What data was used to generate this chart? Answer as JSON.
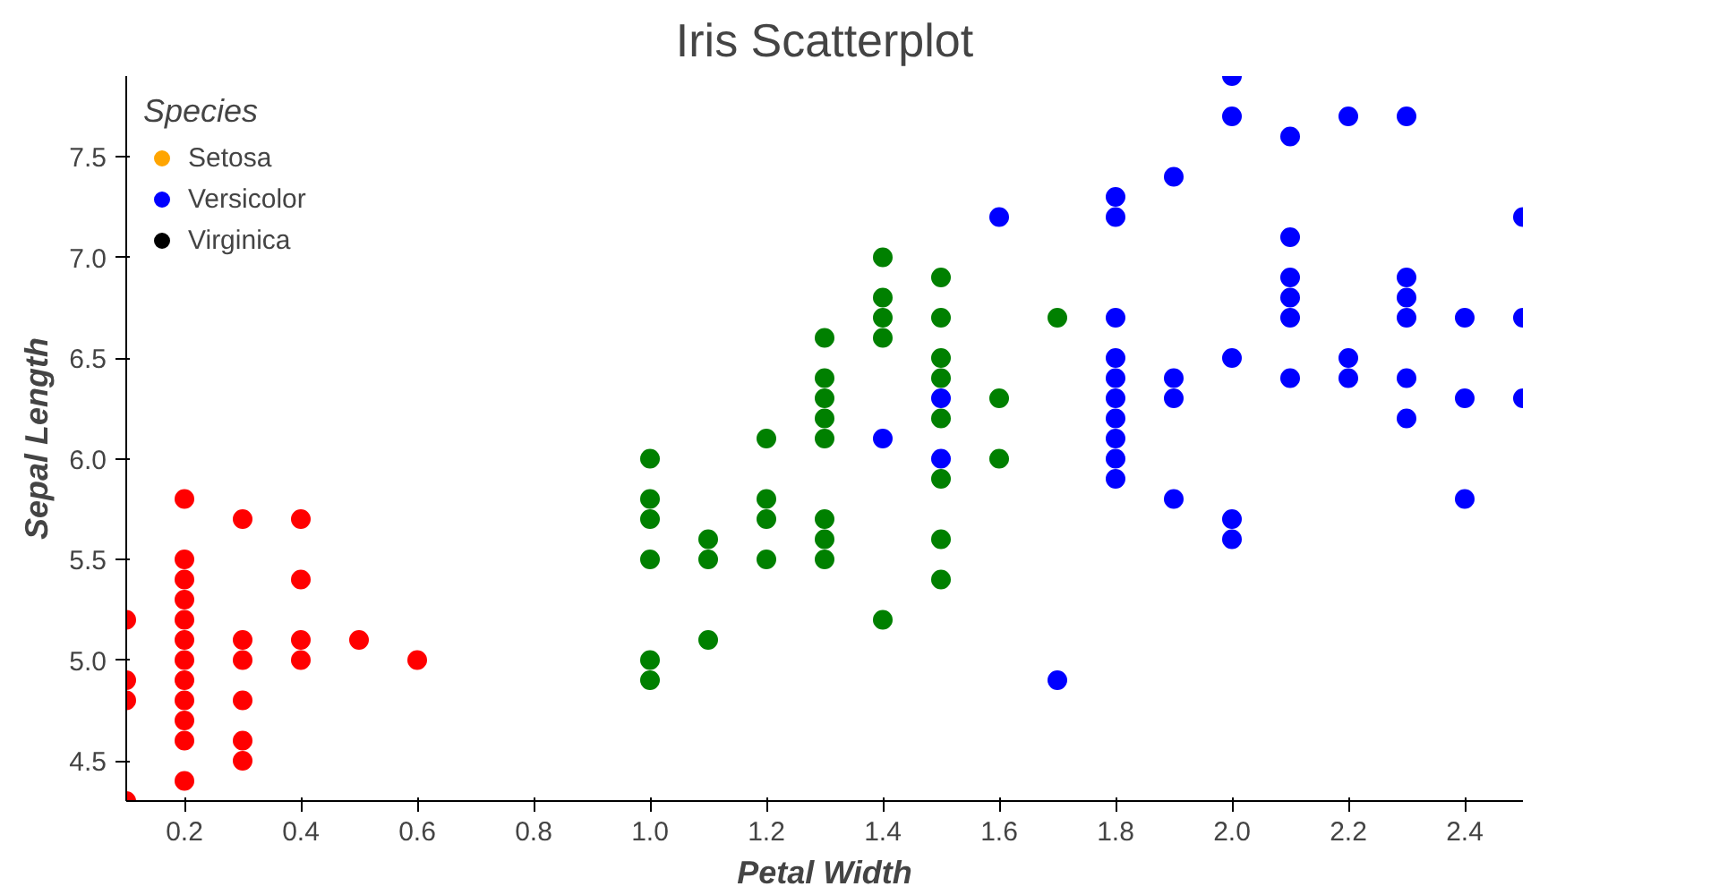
{
  "chart_data": {
    "type": "scatter",
    "title": "Iris Scatterplot",
    "xlabel": "Petal Width",
    "ylabel": "Sepal Length",
    "legend_title": "Species",
    "legend": "top left",
    "marker": "circle",
    "grid": false,
    "xlim": [
      0.1,
      2.5
    ],
    "ylim": [
      4.3,
      7.9
    ],
    "xticks": [
      0.2,
      0.4,
      0.6,
      0.8,
      {
        "value": 1,
        "label": "1.0"
      },
      1.2,
      1.4,
      1.6,
      1.8,
      {
        "value": 2,
        "label": "2.0"
      },
      2.2,
      2.4
    ],
    "yticks": [
      4.5,
      {
        "value": 5,
        "label": "5.0"
      },
      5.5,
      {
        "value": 6,
        "label": "6.0"
      },
      6.5,
      {
        "value": 7,
        "label": "7.0"
      },
      7.5
    ],
    "series": [
      {
        "color": "#ff0000",
        "x": [
          0.1,
          0.1,
          0.1,
          0.1,
          0.2,
          0.2,
          0.2,
          0.2,
          0.2,
          0.2,
          0.2,
          0.2,
          0.2,
          0.2,
          0.2,
          0.2,
          0.3,
          0.3,
          0.3,
          0.3,
          0.3,
          0.3,
          0.4,
          0.4,
          0.4,
          0.4,
          0.5,
          0.6
        ],
        "values": [
          5.2,
          4.9,
          4.8,
          4.3,
          5.8,
          5.5,
          5.4,
          5.3,
          5.2,
          5.1,
          5.0,
          4.9,
          4.8,
          4.7,
          4.6,
          4.4,
          5.7,
          5.1,
          5.0,
          4.8,
          4.6,
          4.5,
          5.7,
          5.4,
          5.1,
          5.0,
          5.1,
          5.0
        ]
      },
      {
        "color": "#008000",
        "x": [
          1.0,
          1.0,
          1.0,
          1.0,
          1.0,
          1.0,
          1.1,
          1.1,
          1.1,
          1.2,
          1.2,
          1.2,
          1.2,
          1.3,
          1.3,
          1.3,
          1.3,
          1.3,
          1.3,
          1.3,
          1.3,
          1.4,
          1.4,
          1.4,
          1.4,
          1.4,
          1.5,
          1.5,
          1.5,
          1.5,
          1.5,
          1.5,
          1.5,
          1.5,
          1.6,
          1.6,
          1.7
        ],
        "values": [
          6.0,
          5.8,
          5.7,
          5.5,
          5.0,
          4.9,
          5.6,
          5.5,
          5.1,
          6.1,
          5.8,
          5.7,
          5.5,
          6.6,
          6.4,
          6.3,
          6.2,
          6.1,
          5.7,
          5.6,
          5.5,
          7.0,
          6.8,
          6.7,
          6.6,
          5.2,
          6.9,
          6.7,
          6.5,
          6.4,
          6.2,
          5.9,
          5.6,
          5.4,
          6.3,
          6.0,
          6.7
        ]
      },
      {
        "color": "#0000ff",
        "x": [
          1.4,
          1.5,
          1.5,
          1.6,
          1.7,
          1.8,
          1.8,
          1.8,
          1.8,
          1.8,
          1.8,
          1.8,
          1.8,
          1.8,
          1.8,
          1.9,
          1.9,
          1.9,
          1.9,
          2.0,
          2.0,
          2.0,
          2.0,
          2.0,
          2.1,
          2.1,
          2.1,
          2.1,
          2.1,
          2.1,
          2.2,
          2.2,
          2.2,
          2.3,
          2.3,
          2.3,
          2.3,
          2.3,
          2.3,
          2.4,
          2.4,
          2.4,
          2.5,
          2.5,
          2.5
        ],
        "values": [
          6.1,
          6.3,
          6.0,
          7.2,
          4.9,
          7.3,
          7.2,
          6.7,
          6.5,
          6.4,
          6.3,
          6.2,
          6.1,
          6.0,
          5.9,
          7.4,
          6.4,
          6.3,
          5.8,
          7.9,
          7.7,
          6.5,
          5.7,
          5.6,
          7.6,
          7.1,
          6.9,
          6.8,
          6.7,
          6.4,
          7.7,
          6.5,
          6.4,
          7.7,
          6.9,
          6.8,
          6.7,
          6.4,
          6.2,
          6.7,
          6.3,
          5.8,
          7.2,
          6.7,
          6.3
        ]
      },
      {
        "name": "Setosa",
        "color": "#ffa500"
      },
      {
        "name": "Versicolor",
        "color": "#0000ff"
      },
      {
        "name": "Virginica",
        "color": "#000000"
      }
    ]
  }
}
